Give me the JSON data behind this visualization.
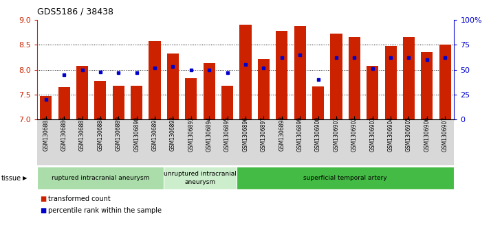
{
  "title": "GDS5186 / 38438",
  "samples": [
    "GSM1306885",
    "GSM1306886",
    "GSM1306887",
    "GSM1306888",
    "GSM1306889",
    "GSM1306890",
    "GSM1306891",
    "GSM1306892",
    "GSM1306893",
    "GSM1306894",
    "GSM1306895",
    "GSM1306896",
    "GSM1306897",
    "GSM1306898",
    "GSM1306899",
    "GSM1306900",
    "GSM1306901",
    "GSM1306902",
    "GSM1306903",
    "GSM1306904",
    "GSM1306905",
    "GSM1306906",
    "GSM1306907"
  ],
  "transformed_count": [
    7.47,
    7.65,
    8.08,
    7.78,
    7.68,
    7.68,
    8.57,
    8.33,
    7.83,
    8.13,
    7.68,
    8.9,
    8.22,
    8.78,
    8.88,
    7.67,
    8.72,
    8.65,
    8.08,
    8.48,
    8.65,
    8.36,
    8.5
  ],
  "percentile_rank": [
    20,
    45,
    50,
    48,
    47,
    47,
    52,
    53,
    50,
    50,
    47,
    55,
    52,
    62,
    65,
    40,
    62,
    62,
    51,
    62,
    62,
    60,
    62
  ],
  "ylim_left": [
    7,
    9
  ],
  "ylim_right": [
    0,
    100
  ],
  "yticks_left": [
    7,
    7.5,
    8,
    8.5,
    9
  ],
  "yticks_right": [
    0,
    25,
    50,
    75,
    100
  ],
  "bar_color": "#cc2200",
  "dot_color": "#0000cc",
  "xticklabel_bg": "#d8d8d8",
  "plot_bg": "#ffffff",
  "tissue_groups": [
    {
      "label": "ruptured intracranial aneurysm",
      "start": 0,
      "end": 7,
      "color": "#aaddaa"
    },
    {
      "label": "unruptured intracranial\naneurysm",
      "start": 7,
      "end": 11,
      "color": "#cceecc"
    },
    {
      "label": "superficial temporal artery",
      "start": 11,
      "end": 23,
      "color": "#44bb44"
    }
  ],
  "legend_bar_label": "transformed count",
  "legend_dot_label": "percentile rank within the sample",
  "xlabel_tissue": "tissue"
}
